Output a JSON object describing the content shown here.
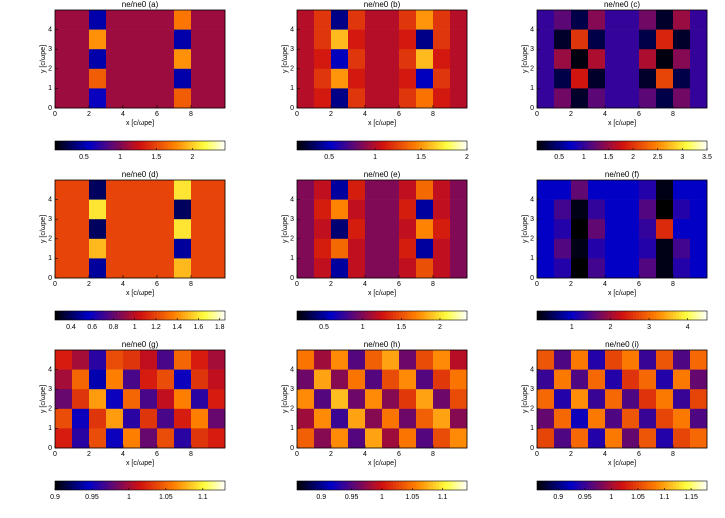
{
  "chart_data": [
    {
      "type": "heatmap",
      "title": "ne/ne0 (a)",
      "x_label": "x [c/ωpe]",
      "y_label": "y [c/ωpe]",
      "xlim": [
        0,
        10
      ],
      "ylim": [
        0,
        5
      ],
      "xticks": [
        0,
        2,
        4,
        6,
        8
      ],
      "yticks": [
        0,
        1,
        2,
        3,
        4
      ],
      "clim": [
        0.1,
        2.45
      ],
      "cticks": [
        0.5,
        1,
        1.5,
        2
      ],
      "values": [
        [
          1.1,
          1.1,
          0.5,
          1.1,
          1.1,
          1.1,
          1.1,
          1.7,
          1.1,
          1.1
        ],
        [
          1.1,
          1.1,
          1.8,
          1.1,
          1.1,
          1.1,
          1.1,
          0.5,
          1.1,
          1.1
        ],
        [
          1.1,
          1.1,
          0.5,
          1.1,
          1.1,
          1.1,
          1.1,
          1.8,
          1.1,
          1.1
        ],
        [
          1.1,
          1.1,
          1.6,
          1.1,
          1.1,
          1.1,
          1.1,
          0.5,
          1.1,
          1.1
        ],
        [
          1.1,
          1.1,
          0.6,
          1.1,
          1.1,
          1.1,
          1.1,
          1.6,
          1.1,
          1.1
        ]
      ]
    },
    {
      "type": "heatmap",
      "title": "ne/ne0 (b)",
      "x_label": "x [c/ωpe]",
      "y_label": "y [c/ωpe]",
      "xlim": [
        0,
        10
      ],
      "ylim": [
        0,
        5
      ],
      "xticks": [
        0,
        2,
        4,
        6,
        8
      ],
      "yticks": [
        0,
        1,
        2,
        3,
        4
      ],
      "clim": [
        0.15,
        2.0
      ],
      "cticks": [
        0.5,
        1,
        1.5,
        2
      ],
      "values": [
        [
          1.0,
          1.2,
          0.4,
          1.2,
          1.0,
          1.0,
          1.2,
          1.5,
          1.2,
          1.0
        ],
        [
          1.0,
          1.2,
          1.6,
          1.1,
          1.0,
          1.0,
          1.1,
          0.4,
          1.2,
          1.0
        ],
        [
          1.0,
          1.1,
          0.5,
          1.2,
          1.0,
          1.0,
          1.2,
          1.6,
          1.1,
          1.0
        ],
        [
          1.0,
          1.2,
          1.5,
          1.1,
          1.0,
          1.0,
          1.1,
          0.5,
          1.2,
          1.0
        ],
        [
          1.0,
          1.1,
          0.4,
          1.2,
          1.0,
          1.0,
          1.2,
          1.4,
          1.1,
          1.0
        ]
      ]
    },
    {
      "type": "heatmap",
      "title": "ne/ne0 (c)",
      "x_label": "x [c/ωpe]",
      "y_label": "y [c/ωpe]",
      "xlim": [
        0,
        10
      ],
      "ylim": [
        0,
        5
      ],
      "xticks": [
        0,
        2,
        4,
        6,
        8
      ],
      "yticks": [
        0,
        1,
        2,
        3,
        4
      ],
      "clim": [
        0.05,
        3.5
      ],
      "cticks": [
        0.5,
        1,
        1.5,
        2,
        2.5,
        3,
        3.5
      ],
      "values": [
        [
          1.0,
          1.2,
          0.3,
          1.4,
          1.0,
          1.0,
          1.3,
          0.2,
          1.5,
          1.0
        ],
        [
          1.0,
          0.2,
          2.0,
          0.3,
          1.0,
          1.0,
          0.3,
          1.9,
          0.2,
          1.0
        ],
        [
          1.0,
          1.5,
          0.1,
          1.6,
          1.0,
          1.0,
          1.6,
          0.1,
          1.4,
          1.0
        ],
        [
          1.0,
          0.3,
          1.8,
          0.2,
          1.0,
          1.0,
          0.2,
          2.1,
          0.3,
          1.0
        ],
        [
          1.0,
          1.3,
          0.2,
          1.2,
          1.0,
          1.0,
          1.2,
          0.3,
          1.3,
          1.0
        ]
      ]
    },
    {
      "type": "heatmap",
      "title": "ne/ne0 (d)",
      "x_label": "x [c/ωpe]",
      "y_label": "y [c/ωpe]",
      "xlim": [
        0,
        10
      ],
      "ylim": [
        0,
        5
      ],
      "xticks": [
        0,
        2,
        4,
        6,
        8
      ],
      "yticks": [
        0,
        1,
        2,
        3,
        4
      ],
      "clim": [
        0.25,
        1.85
      ],
      "cticks": [
        0.4,
        0.6,
        0.8,
        1,
        1.2,
        1.4,
        1.6,
        1.8
      ],
      "values": [
        [
          1.2,
          1.2,
          0.4,
          1.2,
          1.2,
          1.2,
          1.2,
          1.6,
          1.2,
          1.2
        ],
        [
          1.2,
          1.2,
          1.6,
          1.2,
          1.2,
          1.2,
          1.2,
          0.4,
          1.2,
          1.2
        ],
        [
          1.2,
          1.2,
          0.4,
          1.2,
          1.2,
          1.2,
          1.2,
          1.6,
          1.2,
          1.2
        ],
        [
          1.2,
          1.2,
          1.5,
          1.2,
          1.2,
          1.2,
          1.2,
          0.5,
          1.2,
          1.2
        ],
        [
          1.2,
          1.2,
          0.5,
          1.2,
          1.2,
          1.2,
          1.2,
          1.5,
          1.2,
          1.2
        ]
      ]
    },
    {
      "type": "heatmap",
      "title": "ne/ne0 (e)",
      "x_label": "x [c/ωpe]",
      "y_label": "y [c/ωpe]",
      "xlim": [
        0,
        10
      ],
      "ylim": [
        0,
        5
      ],
      "xticks": [
        0,
        2,
        4,
        6,
        8
      ],
      "yticks": [
        0,
        1,
        2,
        3,
        4
      ],
      "clim": [
        0.15,
        2.35
      ],
      "cticks": [
        0.5,
        1,
        1.5,
        2
      ],
      "values": [
        [
          1.0,
          1.2,
          0.5,
          1.3,
          1.0,
          1.0,
          1.2,
          1.6,
          1.2,
          1.0
        ],
        [
          1.0,
          1.3,
          1.7,
          1.2,
          1.0,
          1.0,
          1.3,
          0.5,
          1.2,
          1.0
        ],
        [
          1.0,
          1.2,
          0.4,
          1.3,
          1.0,
          1.0,
          1.2,
          1.7,
          1.3,
          1.0
        ],
        [
          1.0,
          1.3,
          1.6,
          1.2,
          1.0,
          1.0,
          1.3,
          0.5,
          1.2,
          1.0
        ],
        [
          1.0,
          1.2,
          0.5,
          1.2,
          1.0,
          1.0,
          1.2,
          1.5,
          1.2,
          1.0
        ]
      ]
    },
    {
      "type": "heatmap",
      "title": "ne/ne0 (f)",
      "x_label": "x [c/ωpe]",
      "y_label": "y [c/ωpe]",
      "xlim": [
        0,
        10
      ],
      "ylim": [
        0,
        5
      ],
      "xticks": [
        0,
        2,
        4,
        6,
        8
      ],
      "yticks": [
        0,
        1,
        2,
        3,
        4
      ],
      "clim": [
        0.1,
        4.5
      ],
      "cticks": [
        1,
        2,
        3,
        4
      ],
      "values": [
        [
          1.0,
          1.0,
          1.6,
          1.0,
          1.0,
          1.0,
          1.2,
          0.2,
          1.0,
          1.0
        ],
        [
          1.0,
          1.4,
          0.2,
          1.3,
          1.0,
          1.0,
          1.5,
          0.1,
          1.2,
          1.0
        ],
        [
          1.0,
          1.2,
          0.1,
          1.6,
          1.0,
          1.0,
          1.3,
          2.5,
          1.0,
          1.0
        ],
        [
          1.0,
          1.5,
          0.2,
          1.2,
          1.0,
          1.0,
          1.2,
          0.2,
          1.4,
          1.0
        ],
        [
          1.0,
          1.2,
          0.1,
          1.4,
          1.0,
          1.0,
          1.5,
          0.2,
          1.2,
          1.0
        ]
      ]
    },
    {
      "type": "heatmap",
      "title": "ne/ne0 (g)",
      "x_label": "x [c/ωpe]",
      "y_label": "y [c/ωpe]",
      "xlim": [
        0,
        10
      ],
      "ylim": [
        0,
        5
      ],
      "xticks": [
        0,
        2,
        4,
        6,
        8
      ],
      "yticks": [
        0,
        1,
        2,
        3,
        4
      ],
      "clim": [
        0.9,
        1.13
      ],
      "cticks": [
        0.9,
        0.95,
        1,
        1.05,
        1.1
      ],
      "values": [
        [
          1.02,
          1.0,
          0.96,
          1.04,
          1.03,
          1.01,
          0.97,
          1.05,
          1.02,
          1.0
        ],
        [
          1.0,
          1.05,
          0.94,
          1.06,
          0.97,
          1.02,
          1.04,
          0.95,
          1.03,
          1.01
        ],
        [
          0.98,
          1.03,
          1.07,
          0.95,
          1.05,
          0.97,
          1.01,
          1.06,
          0.96,
          1.02
        ],
        [
          1.04,
          0.95,
          1.03,
          1.07,
          0.96,
          1.03,
          0.97,
          1.02,
          1.06,
          0.98
        ],
        [
          1.02,
          0.96,
          1.04,
          0.95,
          1.06,
          0.98,
          1.04,
          0.96,
          1.03,
          1.02
        ]
      ]
    },
    {
      "type": "heatmap",
      "title": "ne/ne0 (h)",
      "x_label": "x [c/ωpe]",
      "y_label": "y [c/ωpe]",
      "xlim": [
        0,
        10
      ],
      "ylim": [
        0,
        5
      ],
      "xticks": [
        0,
        2,
        4,
        6,
        8
      ],
      "yticks": [
        0,
        1,
        2,
        3,
        4
      ],
      "clim": [
        0.86,
        1.14
      ],
      "cticks": [
        0.9,
        0.95,
        1,
        1.05,
        1.1
      ],
      "values": [
        [
          1.05,
          0.98,
          1.06,
          0.95,
          1.04,
          1.07,
          0.96,
          1.03,
          1.06,
          0.99
        ],
        [
          0.96,
          1.07,
          0.97,
          1.05,
          0.95,
          1.03,
          1.06,
          0.95,
          1.02,
          1.05
        ],
        [
          1.06,
          0.95,
          1.08,
          0.96,
          1.06,
          0.97,
          1.02,
          1.07,
          0.96,
          1.03
        ],
        [
          0.98,
          1.06,
          0.94,
          1.07,
          0.97,
          1.05,
          0.96,
          1.04,
          1.07,
          0.97
        ],
        [
          1.04,
          0.97,
          1.06,
          0.95,
          1.07,
          0.98,
          1.05,
          0.95,
          1.03,
          1.06
        ]
      ]
    },
    {
      "type": "heatmap",
      "title": "ne/ne0 (i)",
      "x_label": "x [c/ωpe]",
      "y_label": "y [c/ωpe]",
      "xlim": [
        0,
        10
      ],
      "ylim": [
        0,
        5
      ],
      "xticks": [
        0,
        2,
        4,
        6,
        8
      ],
      "yticks": [
        0,
        1,
        2,
        3,
        4
      ],
      "clim": [
        0.86,
        1.18
      ],
      "cticks": [
        0.9,
        0.95,
        1,
        1.05,
        1.1,
        1.15
      ],
      "values": [
        [
          1.06,
          0.96,
          1.08,
          0.94,
          1.05,
          1.08,
          0.95,
          1.06,
          0.96,
          1.07
        ],
        [
          0.95,
          1.08,
          0.96,
          1.07,
          0.94,
          1.04,
          1.07,
          0.94,
          1.08,
          0.97
        ],
        [
          1.07,
          0.94,
          1.09,
          0.95,
          1.07,
          0.96,
          1.04,
          1.08,
          0.95,
          1.05
        ],
        [
          0.97,
          1.07,
          0.93,
          1.08,
          0.96,
          1.06,
          0.95,
          1.05,
          1.08,
          0.96
        ],
        [
          1.05,
          0.96,
          1.07,
          0.94,
          1.08,
          0.97,
          1.06,
          0.94,
          1.05,
          1.07
        ]
      ]
    }
  ]
}
